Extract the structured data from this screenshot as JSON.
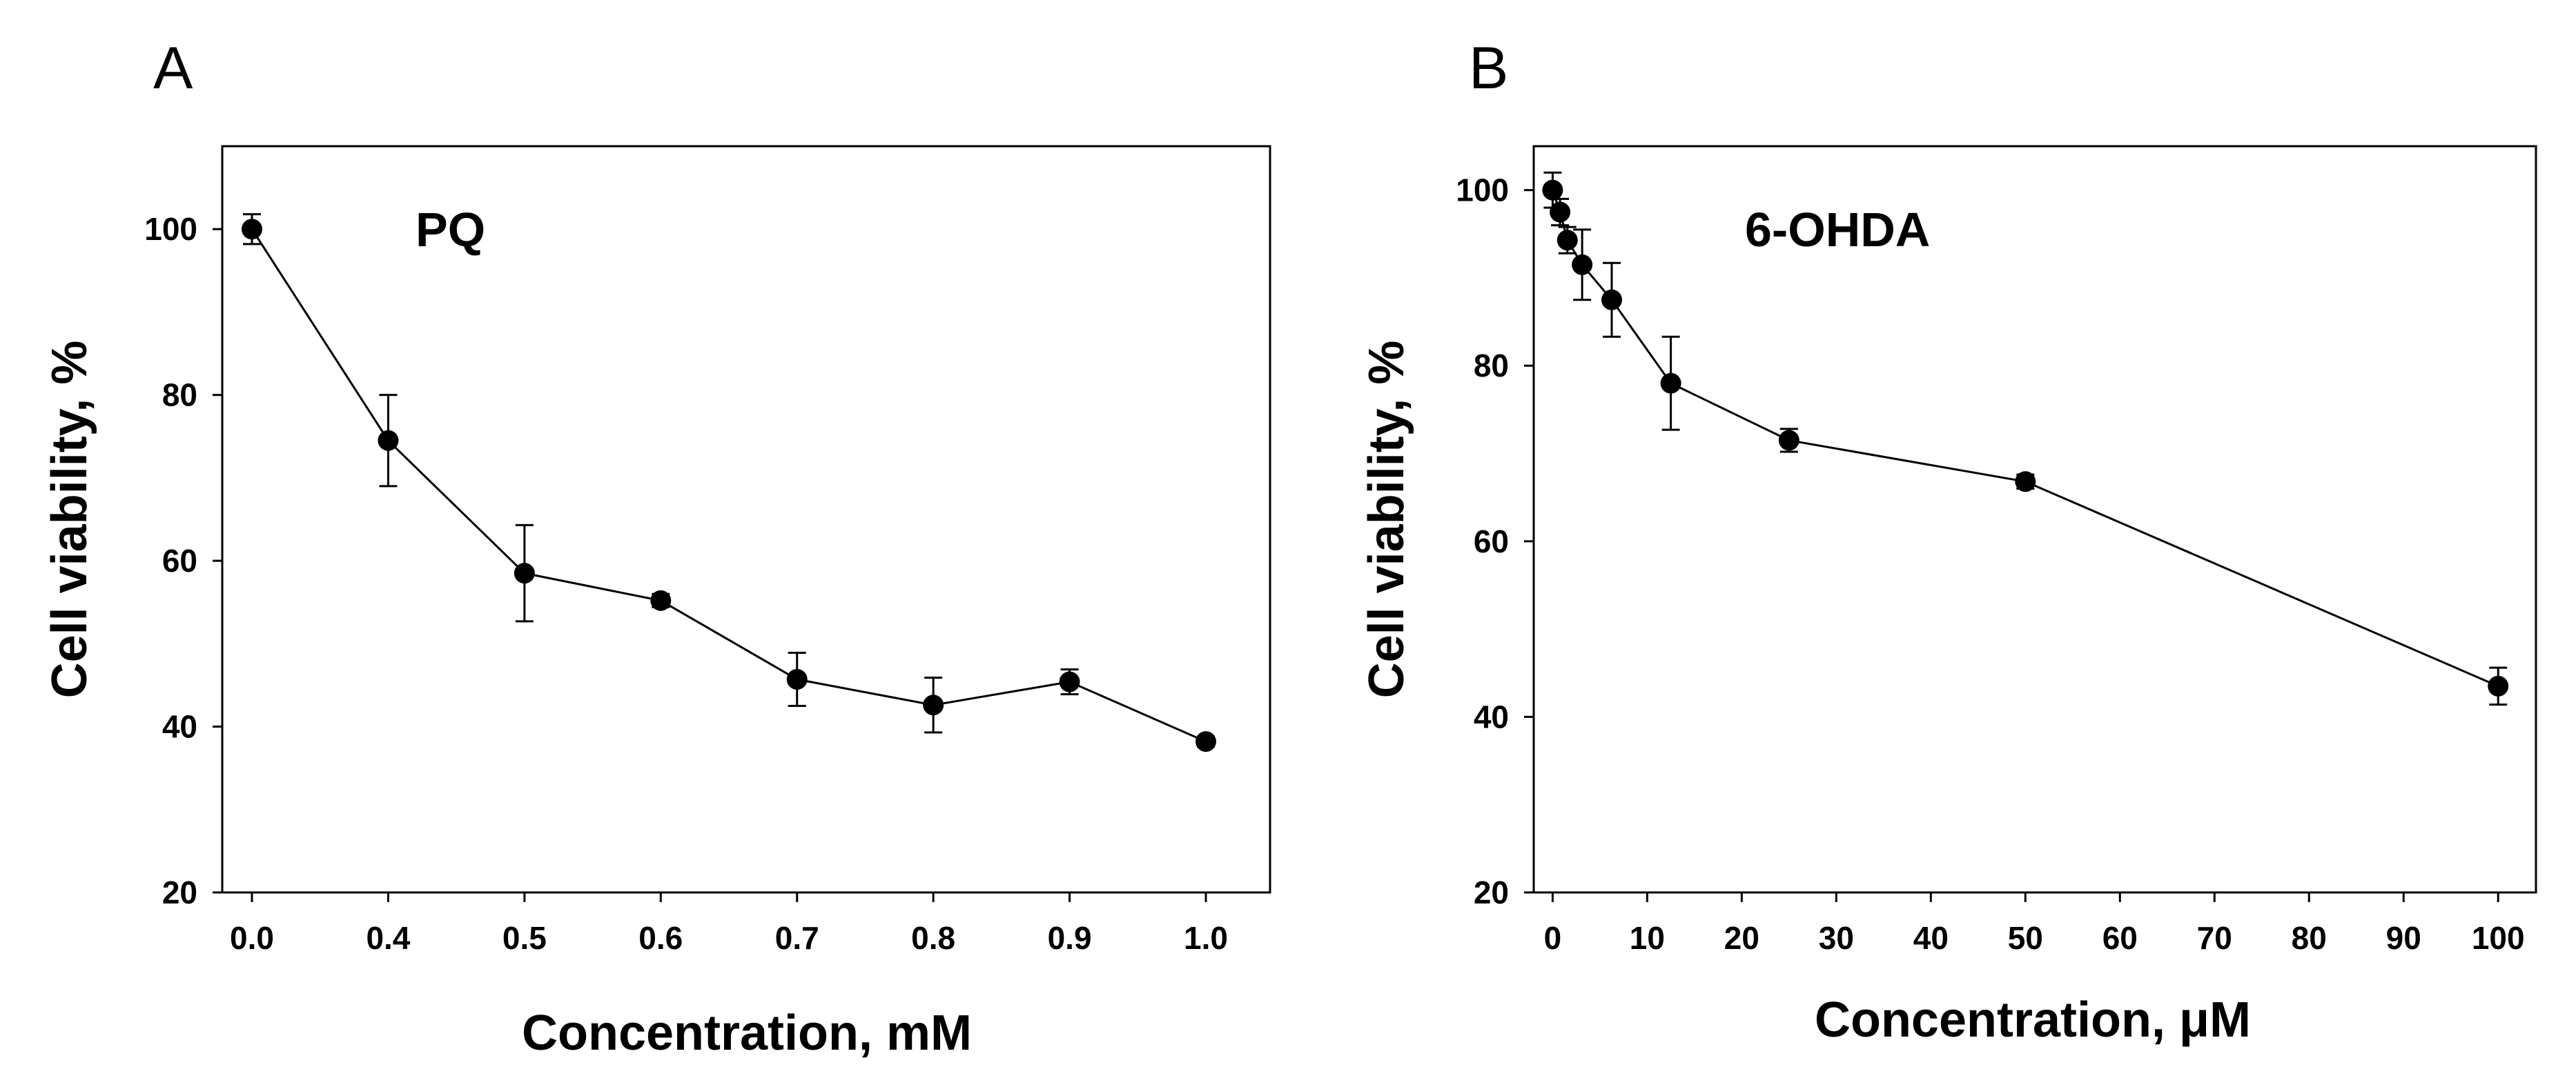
{
  "chart_data": [
    {
      "panel": "A",
      "type": "line",
      "annotation": "PQ",
      "xlabel": "Concentration, mM",
      "ylabel": "Cell viability, %",
      "x_scale": "categorical",
      "categories": [
        "0.0",
        "0.4",
        "0.5",
        "0.6",
        "0.7",
        "0.8",
        "0.9",
        "1.0"
      ],
      "ylim": [
        20,
        110
      ],
      "yticks": [
        20,
        40,
        60,
        80,
        100
      ],
      "series": [
        {
          "name": "PQ",
          "values": [
            100,
            74.5,
            58.5,
            55.2,
            45.7,
            42.6,
            45.4,
            38.2
          ],
          "errors": [
            1.8,
            5.5,
            5.8,
            0.8,
            3.2,
            3.3,
            1.5,
            0.6
          ]
        }
      ]
    },
    {
      "panel": "B",
      "type": "line",
      "annotation": "6-OHDA",
      "xlabel": "Concentration, μM",
      "ylabel": "Cell viability, %",
      "x_scale": "linear",
      "xlim": [
        -2,
        104
      ],
      "xticks": [
        0,
        10,
        20,
        30,
        40,
        50,
        60,
        70,
        80,
        90,
        100
      ],
      "ylim": [
        20,
        105
      ],
      "yticks": [
        20,
        40,
        60,
        80,
        100
      ],
      "series": [
        {
          "name": "6-OHDA",
          "x": [
            0,
            0.78,
            1.56,
            3.12,
            6.25,
            12.5,
            25,
            50,
            100
          ],
          "values": [
            100,
            97.5,
            94.3,
            91.5,
            87.5,
            78.0,
            71.5,
            66.8,
            43.5
          ],
          "errors": [
            2.0,
            1.5,
            1.5,
            4.0,
            4.2,
            5.3,
            1.3,
            0.8,
            2.1
          ]
        }
      ]
    }
  ]
}
